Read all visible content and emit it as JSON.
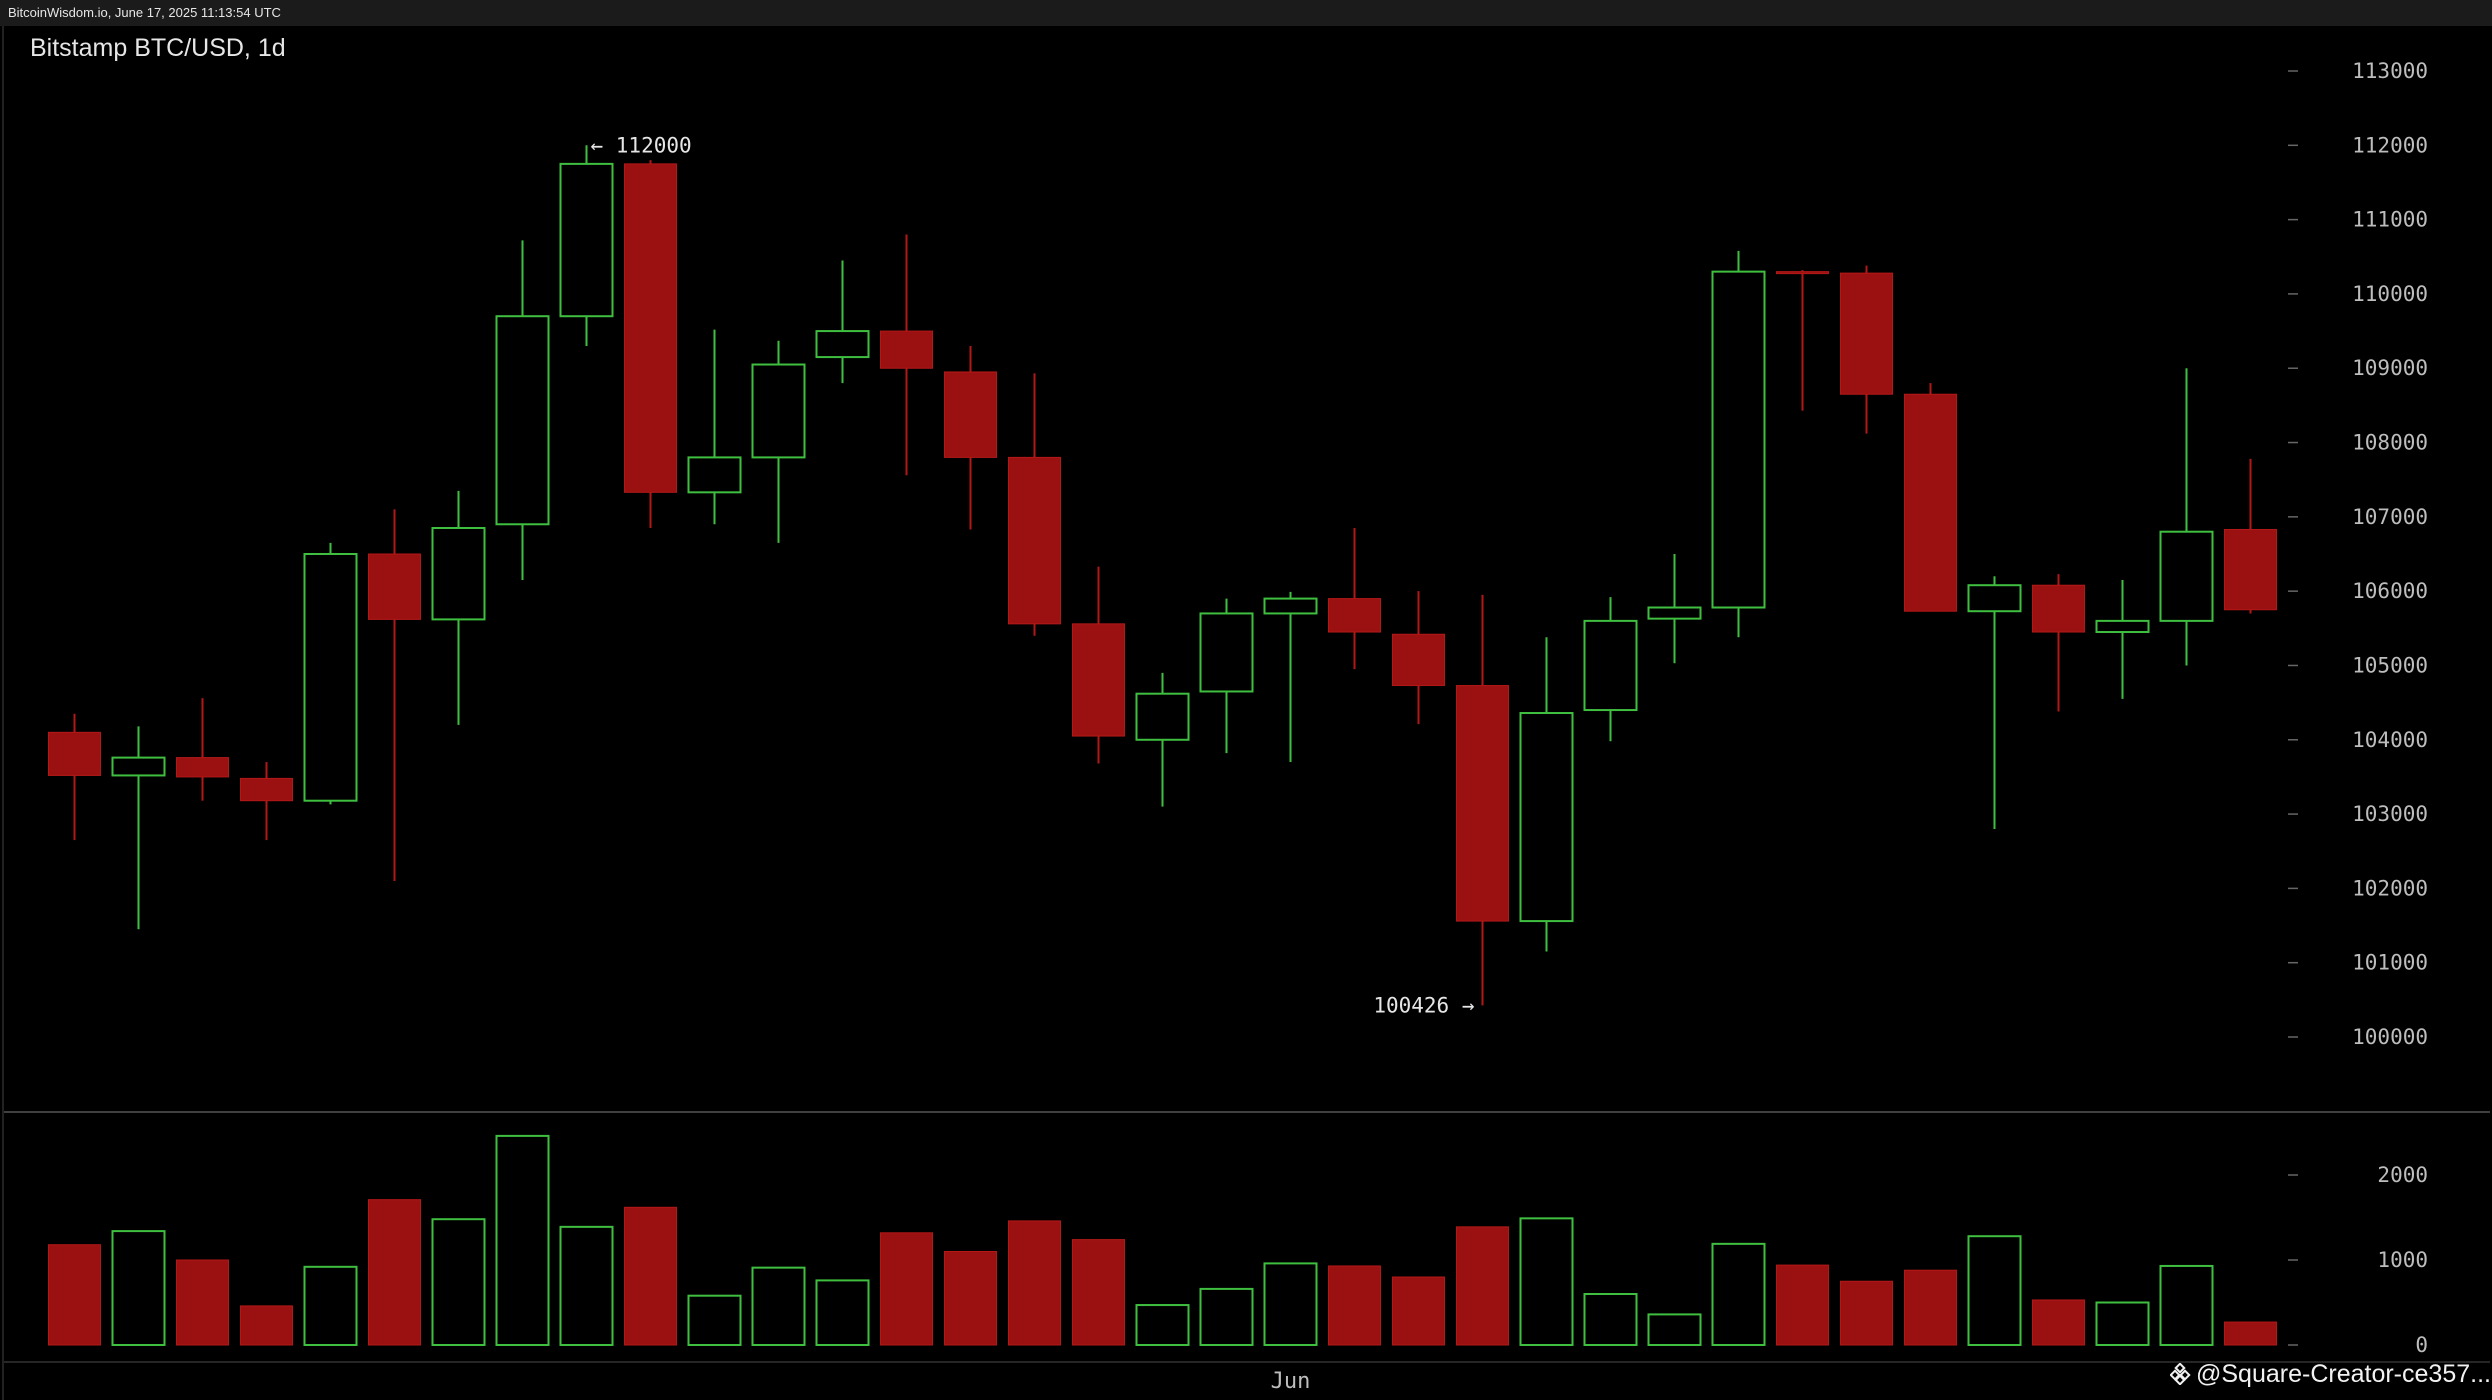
{
  "header": {
    "source_text": "BitcoinWisdom.io, June 17, 2025 11:13:54 UTC"
  },
  "title": "Bitstamp BTC/USD, 1d",
  "watermark": {
    "text": "@Square-Creator-ce357..."
  },
  "colors": {
    "up": "#3fbf3f",
    "down": "#9b1111",
    "grid_text": "#bdbdbd",
    "background": "#000000"
  },
  "chart_data": {
    "type": "candlestick",
    "title": "Bitstamp BTC/USD, 1d",
    "price_axis": {
      "ticks": [
        100000,
        101000,
        102000,
        103000,
        104000,
        105000,
        106000,
        107000,
        108000,
        109000,
        110000,
        111000,
        112000,
        113000
      ],
      "range": [
        99250,
        113600
      ],
      "position": "right"
    },
    "volume_axis": {
      "ticks": [
        0,
        1000,
        2000
      ],
      "range": [
        0,
        2400
      ],
      "position": "right"
    },
    "x_axis": {
      "labels": [
        {
          "text": "Jun",
          "index": 19
        }
      ]
    },
    "annotations": [
      {
        "text": "← 112000",
        "price": 112000,
        "index": 8,
        "side": "right"
      },
      {
        "text": "100426 →",
        "price": 100426,
        "index": 22,
        "side": "left"
      }
    ],
    "candles": [
      {
        "open": 104100,
        "high": 104350,
        "low": 102650,
        "close": 103520,
        "volume": 1180
      },
      {
        "open": 103520,
        "high": 104180,
        "low": 101450,
        "close": 103760,
        "volume": 1340
      },
      {
        "open": 103760,
        "high": 104560,
        "low": 103180,
        "close": 103500,
        "volume": 1000
      },
      {
        "open": 103480,
        "high": 103700,
        "low": 102650,
        "close": 103180,
        "volume": 460
      },
      {
        "open": 103180,
        "high": 106650,
        "low": 103130,
        "close": 106500,
        "volume": 920
      },
      {
        "open": 106500,
        "high": 107100,
        "low": 102100,
        "close": 105620,
        "volume": 1710
      },
      {
        "open": 105620,
        "high": 107350,
        "low": 104200,
        "close": 106850,
        "volume": 1480
      },
      {
        "open": 106900,
        "high": 110720,
        "low": 106150,
        "close": 109700,
        "volume": 2460
      },
      {
        "open": 109700,
        "high": 112000,
        "low": 109300,
        "close": 111750,
        "volume": 1390
      },
      {
        "open": 111750,
        "high": 111800,
        "low": 106850,
        "close": 107330,
        "volume": 1620
      },
      {
        "open": 107330,
        "high": 109520,
        "low": 106900,
        "close": 107800,
        "volume": 580
      },
      {
        "open": 107800,
        "high": 109370,
        "low": 106650,
        "close": 109050,
        "volume": 910
      },
      {
        "open": 109150,
        "high": 110450,
        "low": 108800,
        "close": 109500,
        "volume": 760
      },
      {
        "open": 109500,
        "high": 110800,
        "low": 107560,
        "close": 109000,
        "volume": 1320
      },
      {
        "open": 108950,
        "high": 109300,
        "low": 106830,
        "close": 107800,
        "volume": 1100
      },
      {
        "open": 107800,
        "high": 108930,
        "low": 105400,
        "close": 105560,
        "volume": 1460
      },
      {
        "open": 105560,
        "high": 106330,
        "low": 103680,
        "close": 104050,
        "volume": 1240
      },
      {
        "open": 104000,
        "high": 104900,
        "low": 103100,
        "close": 104620,
        "volume": 470
      },
      {
        "open": 104650,
        "high": 105900,
        "low": 103820,
        "close": 105700,
        "volume": 660
      },
      {
        "open": 105700,
        "high": 105990,
        "low": 103700,
        "close": 105900,
        "volume": 960
      },
      {
        "open": 105900,
        "high": 106850,
        "low": 104950,
        "close": 105450,
        "volume": 930
      },
      {
        "open": 105420,
        "high": 106000,
        "low": 104210,
        "close": 104730,
        "volume": 800
      },
      {
        "open": 104730,
        "high": 105950,
        "low": 100426,
        "close": 101560,
        "volume": 1390
      },
      {
        "open": 101560,
        "high": 105380,
        "low": 101150,
        "close": 104360,
        "volume": 1490
      },
      {
        "open": 104400,
        "high": 105920,
        "low": 103980,
        "close": 105600,
        "volume": 600
      },
      {
        "open": 105630,
        "high": 106500,
        "low": 105030,
        "close": 105780,
        "volume": 360
      },
      {
        "open": 105780,
        "high": 110580,
        "low": 105380,
        "close": 110300,
        "volume": 1190
      },
      {
        "open": 110300,
        "high": 110320,
        "low": 108430,
        "close": 110280,
        "volume": 940
      },
      {
        "open": 110280,
        "high": 110380,
        "low": 108120,
        "close": 108650,
        "volume": 750
      },
      {
        "open": 108650,
        "high": 108800,
        "low": 105730,
        "close": 105730,
        "volume": 880
      },
      {
        "open": 105730,
        "high": 106200,
        "low": 102800,
        "close": 106080,
        "volume": 1280
      },
      {
        "open": 106080,
        "high": 106230,
        "low": 104380,
        "close": 105450,
        "volume": 530
      },
      {
        "open": 105450,
        "high": 106150,
        "low": 104550,
        "close": 105600,
        "volume": 500
      },
      {
        "open": 105600,
        "high": 109000,
        "low": 105000,
        "close": 106800,
        "volume": 930
      },
      {
        "open": 106830,
        "high": 107780,
        "low": 105700,
        "close": 105750,
        "volume": 270
      }
    ]
  }
}
